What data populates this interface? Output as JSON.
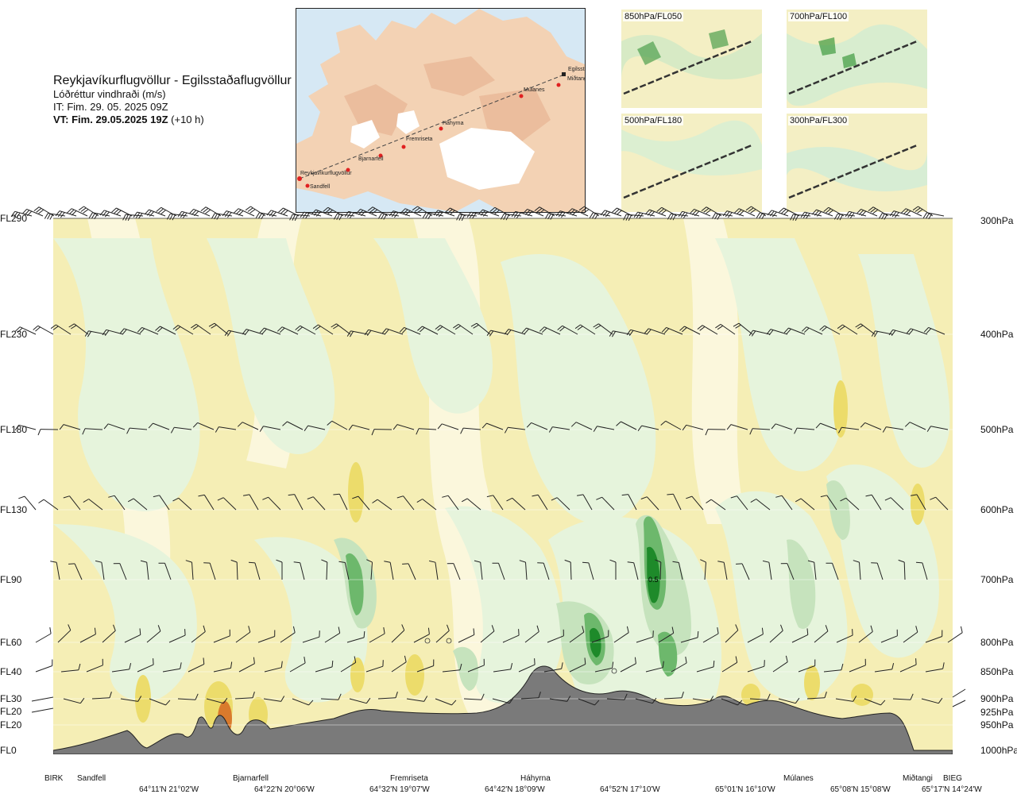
{
  "title": {
    "route": "Reykjavíkurflugvöllur - Egilsstaðaflugvöllur",
    "parameter": "Lóðréttur vindhraði (m/s)",
    "issue_time": "IT: Fim. 29. 05. 2025 09Z",
    "valid_time_bold": "VT: Fim. 29.05.2025 19Z",
    "valid_time_offset": "(+10 h)"
  },
  "map": {
    "waypoints": [
      "Reykjavíkurflugvöllur",
      "Sandfell",
      "Bjarnarfell",
      "Fremriseta",
      "Háhyrna",
      "Múlanes",
      "Egilsstaðir",
      "Miðtangi"
    ]
  },
  "thumbnails": [
    {
      "label": "850hPa/FL050"
    },
    {
      "label": "700hPa/FL100"
    },
    {
      "label": "500hPa/FL180"
    },
    {
      "label": "300hPa/FL300"
    }
  ],
  "left_axis": [
    "FL290",
    "FL230",
    "FL180",
    "FL130",
    "FL90",
    "FL60",
    "FL40",
    "FL30",
    "FL20",
    "FL20",
    "FL0"
  ],
  "right_axis": [
    "300hPa",
    "400hPa",
    "500hPa",
    "600hPa",
    "700hPa",
    "800hPa",
    "850hPa",
    "900hPa",
    "925hPa",
    "950hPa",
    "1000hPa"
  ],
  "bottom_names": [
    "BIRK",
    "Sandfell",
    "Bjarnarfell",
    "Fremriseta",
    "Háhyrna",
    "Múlanes",
    "Miðtangi",
    "BIEG"
  ],
  "bottom_coords": [
    "64°11'N 21°02'W",
    "64°22'N 20°06'W",
    "64°32'N 19°07'W",
    "64°42'N 18°09'W",
    "64°52'N 17°10'W",
    "65°01'N 16°10'W",
    "65°08'N 15°08'W",
    "65°17'N 14°24'W"
  ],
  "chart_data": {
    "type": "heatmap",
    "title": "Lóðréttur vindhraði (m/s)",
    "x_start": "Reykjavíkurflugvöllur",
    "x_end": "Egilsstaðaflugvöllur",
    "y_levels_hPa": [
      1000,
      950,
      925,
      900,
      850,
      800,
      700,
      600,
      500,
      400,
      300
    ],
    "annotation": "0.5",
    "colors": {
      "updraft_light": "#e8f5df",
      "updraft_mid": "#c9e6c0",
      "updraft_strong": "#6fbf6e",
      "updraft_max": "#1e8a2a",
      "downdraft_light": "#f6efb8",
      "downdraft_mid": "#f0e48a",
      "downdraft_strong": "#e2c93a",
      "downdraft_max": "#d96a2a",
      "terrain": "#7a7a7a"
    }
  }
}
